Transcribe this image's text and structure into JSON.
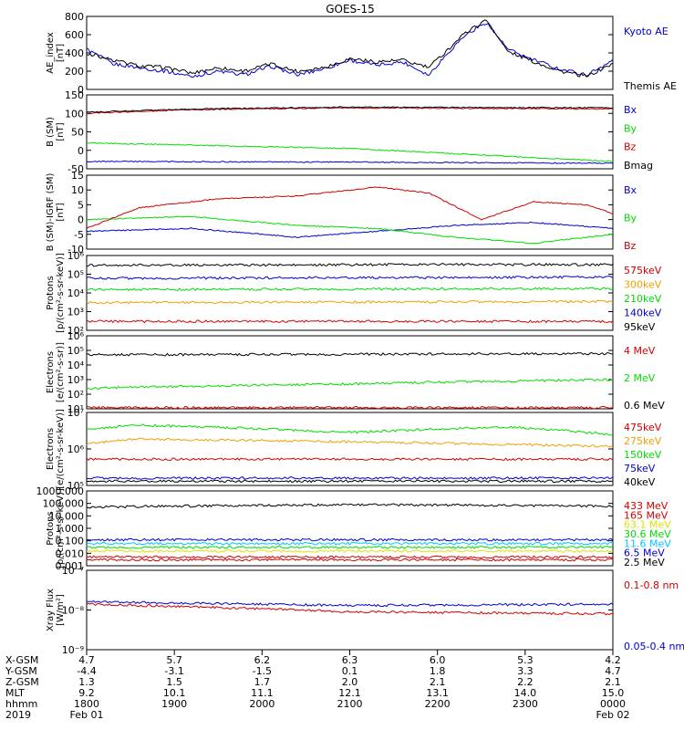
{
  "title": "GOES-15",
  "colors": {
    "black": "#000000",
    "blue": "#0000d0",
    "green": "#00dd00",
    "red": "#d00000",
    "orange": "#f0a000",
    "yellow": "#e0e000",
    "cyan": "#00c8ff",
    "magenta": "#b000b0"
  },
  "chart_data": [
    {
      "type": "line",
      "name": "ae-panel",
      "ylabel": [
        "AE_index",
        "[nT]"
      ],
      "yscale": "linear",
      "ylim": [
        0,
        800
      ],
      "yticks": [
        "0",
        "200",
        "400",
        "600",
        "800"
      ],
      "series": [
        {
          "name": "Kyoto AE",
          "color": "#0000d0",
          "points": [
            [
              0,
              0.55
            ],
            [
              0.05,
              0.35
            ],
            [
              0.1,
              0.3
            ],
            [
              0.15,
              0.25
            ],
            [
              0.2,
              0.18
            ],
            [
              0.25,
              0.25
            ],
            [
              0.3,
              0.2
            ],
            [
              0.35,
              0.32
            ],
            [
              0.4,
              0.2
            ],
            [
              0.45,
              0.28
            ],
            [
              0.5,
              0.4
            ],
            [
              0.55,
              0.33
            ],
            [
              0.6,
              0.38
            ],
            [
              0.65,
              0.2
            ],
            [
              0.68,
              0.45
            ],
            [
              0.72,
              0.75
            ],
            [
              0.76,
              0.92
            ],
            [
              0.8,
              0.55
            ],
            [
              0.85,
              0.4
            ],
            [
              0.9,
              0.28
            ],
            [
              0.95,
              0.2
            ],
            [
              1,
              0.4
            ]
          ]
        },
        {
          "name": "Themis AE",
          "color": "#000000",
          "points": [
            [
              0,
              0.5
            ],
            [
              0.05,
              0.4
            ],
            [
              0.1,
              0.32
            ],
            [
              0.15,
              0.3
            ],
            [
              0.2,
              0.22
            ],
            [
              0.25,
              0.3
            ],
            [
              0.3,
              0.25
            ],
            [
              0.35,
              0.35
            ],
            [
              0.4,
              0.25
            ],
            [
              0.45,
              0.3
            ],
            [
              0.5,
              0.42
            ],
            [
              0.55,
              0.38
            ],
            [
              0.6,
              0.4
            ],
            [
              0.65,
              0.3
            ],
            [
              0.68,
              0.5
            ],
            [
              0.72,
              0.78
            ],
            [
              0.76,
              0.95
            ],
            [
              0.8,
              0.52
            ],
            [
              0.85,
              0.38
            ],
            [
              0.9,
              0.25
            ],
            [
              0.95,
              0.18
            ],
            [
              1,
              0.35
            ]
          ]
        }
      ]
    },
    {
      "type": "line",
      "name": "b-sm-panel",
      "ylabel": [
        "B (SM)",
        "[nT]"
      ],
      "yscale": "linear",
      "ylim": [
        -50,
        150
      ],
      "yticks": [
        "-50",
        "0",
        "50",
        "100",
        "150"
      ],
      "series": [
        {
          "name": "Bx",
          "color": "#0000d0",
          "points": [
            [
              0,
              -30
            ],
            [
              0.5,
              -32
            ],
            [
              1,
              -35
            ]
          ]
        },
        {
          "name": "By",
          "color": "#00dd00",
          "points": [
            [
              0,
              20
            ],
            [
              0.5,
              5
            ],
            [
              1,
              -30
            ]
          ]
        },
        {
          "name": "Bz",
          "color": "#d00000",
          "points": [
            [
              0,
              100
            ],
            [
              0.2,
              110
            ],
            [
              0.5,
              115
            ],
            [
              1,
              112
            ]
          ]
        },
        {
          "name": "Bmag",
          "color": "#000000",
          "points": [
            [
              0,
              103
            ],
            [
              0.2,
              112
            ],
            [
              0.5,
              117
            ],
            [
              1,
              115
            ]
          ]
        }
      ]
    },
    {
      "type": "line",
      "name": "b-igrf-panel",
      "ylabel": [
        "B (SM)-IGRF (SM)",
        "[nT]"
      ],
      "yscale": "linear",
      "ylim": [
        -10,
        15
      ],
      "yticks": [
        "-10",
        "-5",
        "0",
        "5",
        "10",
        "15"
      ],
      "series": [
        {
          "name": "Bx",
          "color": "#0000d0",
          "points": [
            [
              0,
              -4
            ],
            [
              0.2,
              -3
            ],
            [
              0.4,
              -6
            ],
            [
              0.55,
              -4
            ],
            [
              0.7,
              -2
            ],
            [
              0.85,
              -1
            ],
            [
              1,
              -3
            ]
          ]
        },
        {
          "name": "By",
          "color": "#00dd00",
          "points": [
            [
              0,
              0
            ],
            [
              0.2,
              1
            ],
            [
              0.4,
              -2
            ],
            [
              0.55,
              -3
            ],
            [
              0.7,
              -6
            ],
            [
              0.85,
              -8
            ],
            [
              1,
              -5
            ]
          ]
        },
        {
          "name": "Bz",
          "color": "#d00000",
          "points": [
            [
              0,
              -3
            ],
            [
              0.1,
              4
            ],
            [
              0.25,
              7
            ],
            [
              0.4,
              8
            ],
            [
              0.55,
              11
            ],
            [
              0.65,
              9
            ],
            [
              0.75,
              0
            ],
            [
              0.85,
              6
            ],
            [
              0.95,
              5
            ],
            [
              1,
              2
            ]
          ]
        }
      ]
    },
    {
      "type": "line",
      "name": "protons-panel",
      "ylabel": [
        "Protons",
        "[p/(cm²-s-sr-keV)]"
      ],
      "yscale": "log",
      "ylim": [
        100,
        1000000
      ],
      "yticks": [
        "10²",
        "10³",
        "10⁴",
        "10⁵",
        "10⁶"
      ],
      "series": [
        {
          "name": "575keV",
          "color": "#d00000",
          "points": [
            [
              0,
              300
            ],
            [
              1,
              300
            ]
          ]
        },
        {
          "name": "300keV",
          "color": "#f0a000",
          "points": [
            [
              0,
              3000
            ],
            [
              1,
              3500
            ]
          ]
        },
        {
          "name": "210keV",
          "color": "#00dd00",
          "points": [
            [
              0,
              15000
            ],
            [
              1,
              17000
            ]
          ]
        },
        {
          "name": "140keV",
          "color": "#0000d0",
          "points": [
            [
              0,
              60000
            ],
            [
              1,
              70000
            ]
          ]
        },
        {
          "name": "95keV",
          "color": "#000000",
          "points": [
            [
              0,
              300000
            ],
            [
              0.7,
              330000
            ],
            [
              1,
              320000
            ]
          ]
        }
      ]
    },
    {
      "type": "line",
      "name": "electrons-mev-panel",
      "ylabel": [
        "Electrons",
        "[e/(cm²-s-sr)]"
      ],
      "yscale": "log",
      "ylim": [
        10,
        1000000
      ],
      "yticks": [
        "10¹",
        "10²",
        "10³",
        "10⁴",
        "10⁵",
        "10⁶"
      ],
      "series": [
        {
          "name": "4 MeV",
          "color": "#d00000",
          "points": [
            [
              0,
              12
            ],
            [
              1,
              12
            ]
          ]
        },
        {
          "name": "2 MeV",
          "color": "#00dd00",
          "points": [
            [
              0,
              250
            ],
            [
              0.5,
              500
            ],
            [
              1,
              1000
            ]
          ]
        },
        {
          "name": "0.6 MeV",
          "color": "#000000",
          "points": [
            [
              0,
              50000
            ],
            [
              1,
              60000
            ]
          ]
        }
      ]
    },
    {
      "type": "line",
      "name": "electrons-kev-panel",
      "ylabel": [
        "Electrons",
        "[e/(cm²-s-sr-keV)]"
      ],
      "yscale": "log",
      "ylim": [
        10000,
        10000000
      ],
      "yticks": [
        "10⁵",
        "10⁶",
        "10⁷"
      ],
      "series": [
        {
          "name": "475keV",
          "color": "#d00000",
          "points": [
            [
              0,
              120000
            ],
            [
              1,
              120000
            ]
          ]
        },
        {
          "name": "275keV",
          "color": "#f0a000",
          "points": [
            [
              0,
              500000
            ],
            [
              0.1,
              800000
            ],
            [
              1,
              400000
            ]
          ]
        },
        {
          "name": "150keV",
          "color": "#00dd00",
          "points": [
            [
              0,
              2000000
            ],
            [
              0.1,
              3000000
            ],
            [
              0.5,
              1500000
            ],
            [
              0.8,
              2500000
            ],
            [
              1,
              1200000
            ]
          ]
        },
        {
          "name": "75keV",
          "color": "#0000d0",
          "points": [
            [
              0,
              20000
            ],
            [
              1,
              20000
            ]
          ]
        },
        {
          "name": "40keV",
          "color": "#000000",
          "points": [
            [
              0,
              15000
            ],
            [
              1,
              15000
            ]
          ]
        }
      ]
    },
    {
      "type": "line",
      "name": "protons-mev-panel",
      "ylabel": [
        "Protons",
        "[p/(cm²-s-sr-keV)]"
      ],
      "yscale": "log",
      "ylim": [
        0.001,
        1000
      ],
      "yticks": [
        "0.001",
        "0.010",
        "0.100",
        "1.000",
        "10.000",
        "100.000",
        "1000.000"
      ],
      "series": [
        {
          "name": "433 MeV",
          "color": "#d00000",
          "points": [
            [
              0,
              0.003
            ],
            [
              1,
              0.003
            ]
          ]
        },
        {
          "name": "165 MeV",
          "color": "#d00000",
          "points": [
            [
              0,
              0.005
            ],
            [
              1,
              0.005
            ]
          ]
        },
        {
          "name": "63.1 MeV",
          "color": "#e0e000",
          "points": [
            [
              0,
              0.015
            ],
            [
              1,
              0.015
            ]
          ]
        },
        {
          "name": "30.6 MeV",
          "color": "#00dd00",
          "points": [
            [
              0,
              0.03
            ],
            [
              1,
              0.03
            ]
          ]
        },
        {
          "name": "11.6 MeV",
          "color": "#00c8ff",
          "points": [
            [
              0,
              0.06
            ],
            [
              1,
              0.06
            ]
          ]
        },
        {
          "name": "6.5 MeV",
          "color": "#0000d0",
          "points": [
            [
              0,
              0.12
            ],
            [
              1,
              0.12
            ]
          ]
        },
        {
          "name": "2.5 MeV",
          "color": "#000000",
          "points": [
            [
              0,
              50
            ],
            [
              0.5,
              80
            ],
            [
              1,
              60
            ]
          ]
        }
      ]
    },
    {
      "type": "line",
      "name": "xray-panel",
      "ylabel": [
        "Xray Flux",
        "[W/m²]"
      ],
      "yscale": "log",
      "ylim": [
        1e-09,
        1e-07
      ],
      "yticks": [
        "10⁻⁹",
        "10⁻⁸",
        "10⁻⁷"
      ],
      "series": [
        {
          "name": "0.1-0.8 nm",
          "color": "#d00000",
          "points": [
            [
              0,
              1.4e-08
            ],
            [
              0.5,
              9e-09
            ],
            [
              1,
              8e-09
            ]
          ]
        },
        {
          "name": "0.05-0.4 nm",
          "color": "#0000d0",
          "points": [
            [
              0,
              1.6e-08
            ],
            [
              0.5,
              1.3e-08
            ],
            [
              1,
              1.4e-08
            ]
          ]
        }
      ]
    }
  ],
  "xaxis": {
    "row_labels": [
      "X-GSM",
      "Y-GSM",
      "Z-GSM",
      "MLT",
      "hhmm",
      "2019"
    ],
    "columns": [
      [
        "4.7",
        "-4.4",
        "1.3",
        "9.2",
        "1800",
        "Feb 01"
      ],
      [
        "5.7",
        "-3.1",
        "1.5",
        "10.1",
        "1900",
        ""
      ],
      [
        "6.2",
        "-1.5",
        "1.7",
        "11.1",
        "2000",
        ""
      ],
      [
        "6.3",
        "0.1",
        "2.0",
        "12.1",
        "2100",
        ""
      ],
      [
        "6.0",
        "1.8",
        "2.1",
        "13.1",
        "2200",
        ""
      ],
      [
        "5.3",
        "3.3",
        "2.2",
        "14.0",
        "2300",
        ""
      ],
      [
        "4.2",
        "4.7",
        "2.1",
        "15.0",
        "0000",
        "Feb 02"
      ]
    ]
  }
}
